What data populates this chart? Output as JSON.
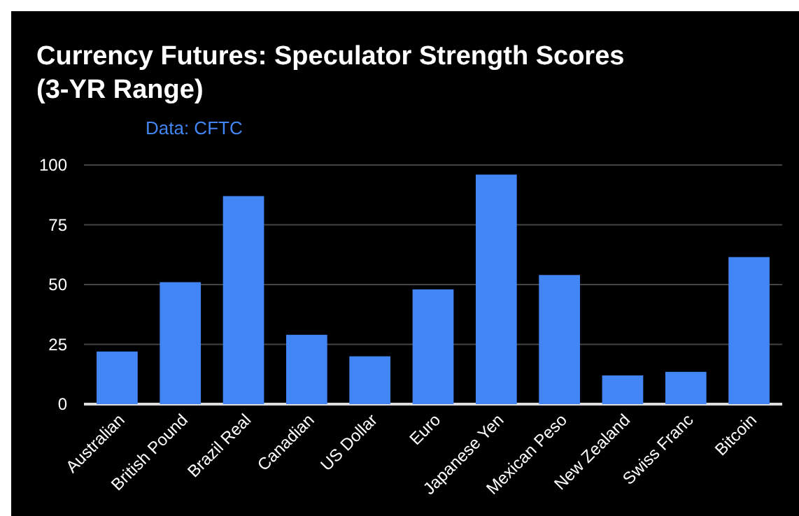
{
  "chart_data": {
    "type": "bar",
    "title": "Currency Futures: Speculator Strength Scores (3-YR Range)",
    "subtitle": "Data: CFTC",
    "categories": [
      "Australian",
      "British Pound",
      "Brazil Real",
      "Canadian",
      "US Dollar",
      "Euro",
      "Japanese Yen",
      "Mexican Peso",
      "New Zealand",
      "Swiss Franc",
      "Bitcoin"
    ],
    "values": [
      22,
      51,
      87,
      29,
      20,
      48,
      96,
      54,
      12,
      13.5,
      61.5
    ],
    "color": "#4285f4",
    "ylim": [
      0,
      100
    ],
    "yticks": [
      0,
      25,
      50,
      75,
      100
    ],
    "grid": "y"
  }
}
